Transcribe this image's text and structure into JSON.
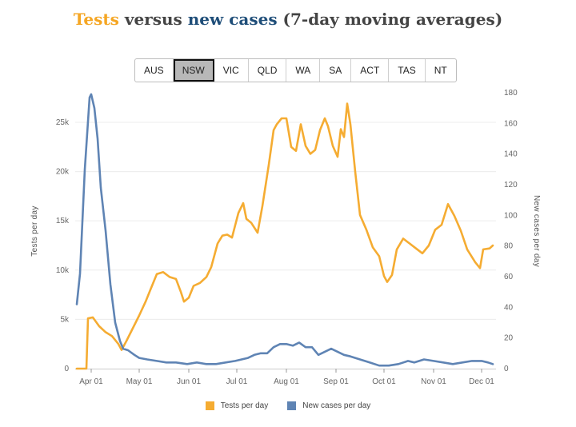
{
  "title": {
    "part1": "Tests",
    "part2": " versus ",
    "part3": "new cases",
    "part4": " (7-day moving averages)"
  },
  "tabs": [
    {
      "label": "AUS",
      "active": false
    },
    {
      "label": "NSW",
      "active": true
    },
    {
      "label": "VIC",
      "active": false
    },
    {
      "label": "QLD",
      "active": false
    },
    {
      "label": "WA",
      "active": false
    },
    {
      "label": "SA",
      "active": false
    },
    {
      "label": "ACT",
      "active": false
    },
    {
      "label": "TAS",
      "active": false
    },
    {
      "label": "NT",
      "active": false
    }
  ],
  "chart_data": {
    "type": "line",
    "title": "Tests versus new cases (7-day moving averages)",
    "ylabel_left": "Tests per day",
    "ylabel_right": "New cases per day",
    "x_ticks": [
      "Apr 01",
      "May 01",
      "Jun 01",
      "Jul 01",
      "Aug 01",
      "Sep 01",
      "Oct 01",
      "Nov 01",
      "Dec 01"
    ],
    "y_left_ticks": [
      "0",
      "5k",
      "10k",
      "15k",
      "20k",
      "25k"
    ],
    "y_right_ticks": [
      "0",
      "20",
      "40",
      "60",
      "80",
      "100",
      "120",
      "140",
      "160",
      "180"
    ],
    "y_left_range": [
      0,
      28000
    ],
    "y_right_range": [
      0,
      180
    ],
    "grid": true,
    "legend_placement": "bottom",
    "colors": {
      "tests": "#f5ac32",
      "cases": "#5f84b4"
    },
    "series": [
      {
        "name": "Tests per day",
        "axis": "left",
        "points": [
          [
            "2020-03-23",
            0
          ],
          [
            "2020-03-29",
            0
          ],
          [
            "2020-03-30",
            5100
          ],
          [
            "2020-04-02",
            5200
          ],
          [
            "2020-04-06",
            4300
          ],
          [
            "2020-04-10",
            3700
          ],
          [
            "2020-04-14",
            3300
          ],
          [
            "2020-04-18",
            2500
          ],
          [
            "2020-04-20",
            1900
          ],
          [
            "2020-04-23",
            2800
          ],
          [
            "2020-04-27",
            4100
          ],
          [
            "2020-05-01",
            5400
          ],
          [
            "2020-05-05",
            6800
          ],
          [
            "2020-05-08",
            8000
          ],
          [
            "2020-05-12",
            9600
          ],
          [
            "2020-05-16",
            9800
          ],
          [
            "2020-05-20",
            9300
          ],
          [
            "2020-05-24",
            9100
          ],
          [
            "2020-05-27",
            7800
          ],
          [
            "2020-05-29",
            6800
          ],
          [
            "2020-06-01",
            7200
          ],
          [
            "2020-06-04",
            8400
          ],
          [
            "2020-06-08",
            8700
          ],
          [
            "2020-06-12",
            9300
          ],
          [
            "2020-06-15",
            10300
          ],
          [
            "2020-06-19",
            12700
          ],
          [
            "2020-06-22",
            13500
          ],
          [
            "2020-06-25",
            13600
          ],
          [
            "2020-06-28",
            13300
          ],
          [
            "2020-07-02",
            15800
          ],
          [
            "2020-07-05",
            16800
          ],
          [
            "2020-07-07",
            15200
          ],
          [
            "2020-07-10",
            14800
          ],
          [
            "2020-07-14",
            13800
          ],
          [
            "2020-07-17",
            16500
          ],
          [
            "2020-07-21",
            20700
          ],
          [
            "2020-07-24",
            24200
          ],
          [
            "2020-07-26",
            24800
          ],
          [
            "2020-07-29",
            25400
          ],
          [
            "2020-08-01",
            25400
          ],
          [
            "2020-08-04",
            22500
          ],
          [
            "2020-08-07",
            22100
          ],
          [
            "2020-08-10",
            24800
          ],
          [
            "2020-08-13",
            22600
          ],
          [
            "2020-08-16",
            21800
          ],
          [
            "2020-08-19",
            22200
          ],
          [
            "2020-08-22",
            24200
          ],
          [
            "2020-08-25",
            25400
          ],
          [
            "2020-08-27",
            24600
          ],
          [
            "2020-08-30",
            22600
          ],
          [
            "2020-09-02",
            21500
          ],
          [
            "2020-09-04",
            24300
          ],
          [
            "2020-09-06",
            23500
          ],
          [
            "2020-09-08",
            26900
          ],
          [
            "2020-09-10",
            24800
          ],
          [
            "2020-09-13",
            20000
          ],
          [
            "2020-09-16",
            15600
          ],
          [
            "2020-09-20",
            14100
          ],
          [
            "2020-09-24",
            12300
          ],
          [
            "2020-09-28",
            11400
          ],
          [
            "2020-10-01",
            9400
          ],
          [
            "2020-10-03",
            8800
          ],
          [
            "2020-10-06",
            9500
          ],
          [
            "2020-10-09",
            12100
          ],
          [
            "2020-10-13",
            13200
          ],
          [
            "2020-10-17",
            12700
          ],
          [
            "2020-10-21",
            12200
          ],
          [
            "2020-10-25",
            11700
          ],
          [
            "2020-10-29",
            12500
          ],
          [
            "2020-11-02",
            14100
          ],
          [
            "2020-11-06",
            14600
          ],
          [
            "2020-11-10",
            16700
          ],
          [
            "2020-11-14",
            15500
          ],
          [
            "2020-11-18",
            14000
          ],
          [
            "2020-11-22",
            12100
          ],
          [
            "2020-11-27",
            10800
          ],
          [
            "2020-11-30",
            10200
          ],
          [
            "2020-12-02",
            12100
          ],
          [
            "2020-12-06",
            12200
          ],
          [
            "2020-12-08",
            12500
          ]
        ]
      },
      {
        "name": "New cases per day",
        "axis": "right",
        "points": [
          [
            "2020-03-23",
            42
          ],
          [
            "2020-03-25",
            62
          ],
          [
            "2020-03-28",
            130
          ],
          [
            "2020-03-31",
            177
          ],
          [
            "2020-04-01",
            179
          ],
          [
            "2020-04-03",
            170
          ],
          [
            "2020-04-05",
            150
          ],
          [
            "2020-04-07",
            118
          ],
          [
            "2020-04-10",
            90
          ],
          [
            "2020-04-13",
            55
          ],
          [
            "2020-04-16",
            30
          ],
          [
            "2020-04-19",
            18
          ],
          [
            "2020-04-21",
            13
          ],
          [
            "2020-04-24",
            12
          ],
          [
            "2020-04-28",
            9
          ],
          [
            "2020-05-01",
            7
          ],
          [
            "2020-05-06",
            6
          ],
          [
            "2020-05-12",
            5
          ],
          [
            "2020-05-18",
            4
          ],
          [
            "2020-05-24",
            4
          ],
          [
            "2020-05-31",
            3
          ],
          [
            "2020-06-06",
            4
          ],
          [
            "2020-06-12",
            3
          ],
          [
            "2020-06-18",
            3
          ],
          [
            "2020-06-24",
            4
          ],
          [
            "2020-06-30",
            5
          ],
          [
            "2020-07-04",
            6
          ],
          [
            "2020-07-08",
            7
          ],
          [
            "2020-07-12",
            9
          ],
          [
            "2020-07-16",
            10
          ],
          [
            "2020-07-20",
            10
          ],
          [
            "2020-07-24",
            14
          ],
          [
            "2020-07-28",
            16
          ],
          [
            "2020-08-01",
            16
          ],
          [
            "2020-08-05",
            15
          ],
          [
            "2020-08-09",
            17
          ],
          [
            "2020-08-13",
            14
          ],
          [
            "2020-08-17",
            14
          ],
          [
            "2020-08-21",
            9
          ],
          [
            "2020-08-25",
            11
          ],
          [
            "2020-08-29",
            13
          ],
          [
            "2020-09-02",
            11
          ],
          [
            "2020-09-06",
            9
          ],
          [
            "2020-09-10",
            8
          ],
          [
            "2020-09-16",
            6
          ],
          [
            "2020-09-22",
            4
          ],
          [
            "2020-09-28",
            2
          ],
          [
            "2020-10-04",
            2
          ],
          [
            "2020-10-10",
            3
          ],
          [
            "2020-10-16",
            5
          ],
          [
            "2020-10-20",
            4
          ],
          [
            "2020-10-26",
            6
          ],
          [
            "2020-11-01",
            5
          ],
          [
            "2020-11-07",
            4
          ],
          [
            "2020-11-13",
            3
          ],
          [
            "2020-11-19",
            4
          ],
          [
            "2020-11-25",
            5
          ],
          [
            "2020-12-01",
            5
          ],
          [
            "2020-12-05",
            4
          ],
          [
            "2020-12-08",
            3
          ]
        ]
      }
    ]
  }
}
